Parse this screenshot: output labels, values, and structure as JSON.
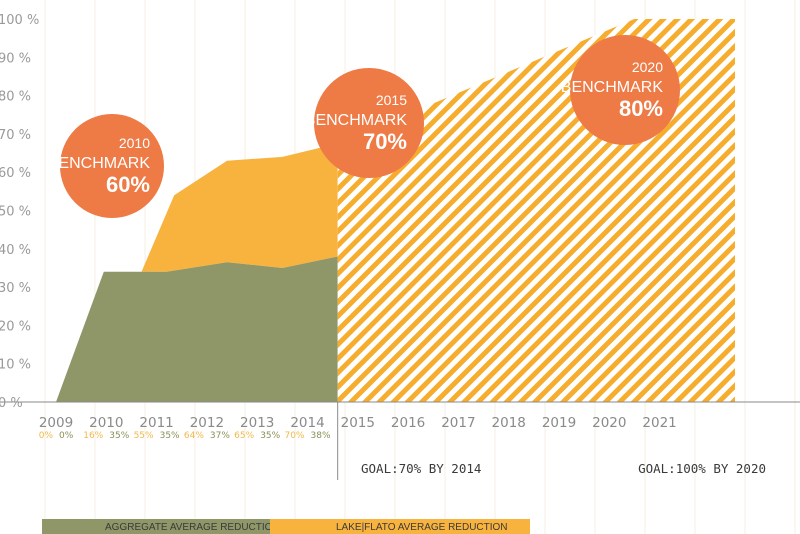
{
  "chart_data": {
    "type": "area",
    "x": [
      2009,
      2010,
      2011,
      2012,
      2013,
      2014,
      2015,
      2016,
      2017,
      2018,
      2019,
      2020,
      2021
    ],
    "xticks": [
      "2009",
      "2010",
      "2011",
      "2012",
      "2013",
      "2014",
      "2015",
      "2016",
      "2017",
      "2018",
      "2019",
      "2020",
      "2021"
    ],
    "yticks": [
      "0 %",
      "10 %",
      "20 %",
      "30 %",
      "40 %",
      "50 %",
      "60 %",
      "70 %",
      "80 %",
      "90 %",
      "100 %"
    ],
    "ylim": [
      0,
      100
    ],
    "series": [
      {
        "name": "AGGREGATE AVERAGE REDUCTION",
        "color": "#8f9668",
        "points": [
          [
            2009.0,
            0
          ],
          [
            2009.95,
            34
          ],
          [
            2011.2,
            34
          ],
          [
            2012.4,
            36.5
          ],
          [
            2013.5,
            35
          ],
          [
            2014.6,
            38
          ]
        ]
      },
      {
        "name": "LAKE|FLATO AVERAGE REDUCTION",
        "color": "#f8b33f",
        "points": [
          [
            2010.7,
            34
          ],
          [
            2011.35,
            54
          ],
          [
            2012.4,
            63
          ],
          [
            2013.5,
            64
          ],
          [
            2014.6,
            67.5
          ]
        ]
      },
      {
        "name": "projection",
        "color": "#f6ad2e",
        "pattern": "diagonal-stripes",
        "points": [
          [
            2014.6,
            0
          ],
          [
            2014.6,
            67.5
          ],
          [
            2020.5,
            100
          ],
          [
            2022.5,
            100
          ],
          [
            2022.5,
            0
          ]
        ]
      }
    ],
    "year_labels": [
      {
        "year": 2009,
        "lf": "0%",
        "agg": "0%"
      },
      {
        "year": 2010,
        "lf": "16%",
        "agg": "35%"
      },
      {
        "year": 2011,
        "lf": "55%",
        "agg": "35%"
      },
      {
        "year": 2012,
        "lf": "64%",
        "agg": "37%"
      },
      {
        "year": 2013,
        "lf": "65%",
        "agg": "35%"
      },
      {
        "year": 2014,
        "lf": "70%",
        "agg": "38%"
      }
    ],
    "benchmarks": [
      {
        "year": "2010",
        "label": "BENCHMARK",
        "value": "60%",
        "color": "#ee7a45"
      },
      {
        "year": "2015",
        "label": "BENCHMARK",
        "value": "70%",
        "color": "#ee7a45"
      },
      {
        "year": "2020",
        "label": "BENCHMARK",
        "value": "80%",
        "color": "#ee7a45"
      }
    ],
    "goals": [
      "GOAL:70% BY 2014",
      "GOAL:100% BY 2020"
    ],
    "legend": [
      {
        "label": "AGGREGATE AVERAGE REDUCTION",
        "color": "#8f9668"
      },
      {
        "label": "LAKE|FLATO AVERAGE REDUCTION",
        "color": "#f8b33f"
      }
    ],
    "grid": {
      "vertical": true,
      "color": "#f6efe2"
    },
    "legend_position": "bottom"
  }
}
